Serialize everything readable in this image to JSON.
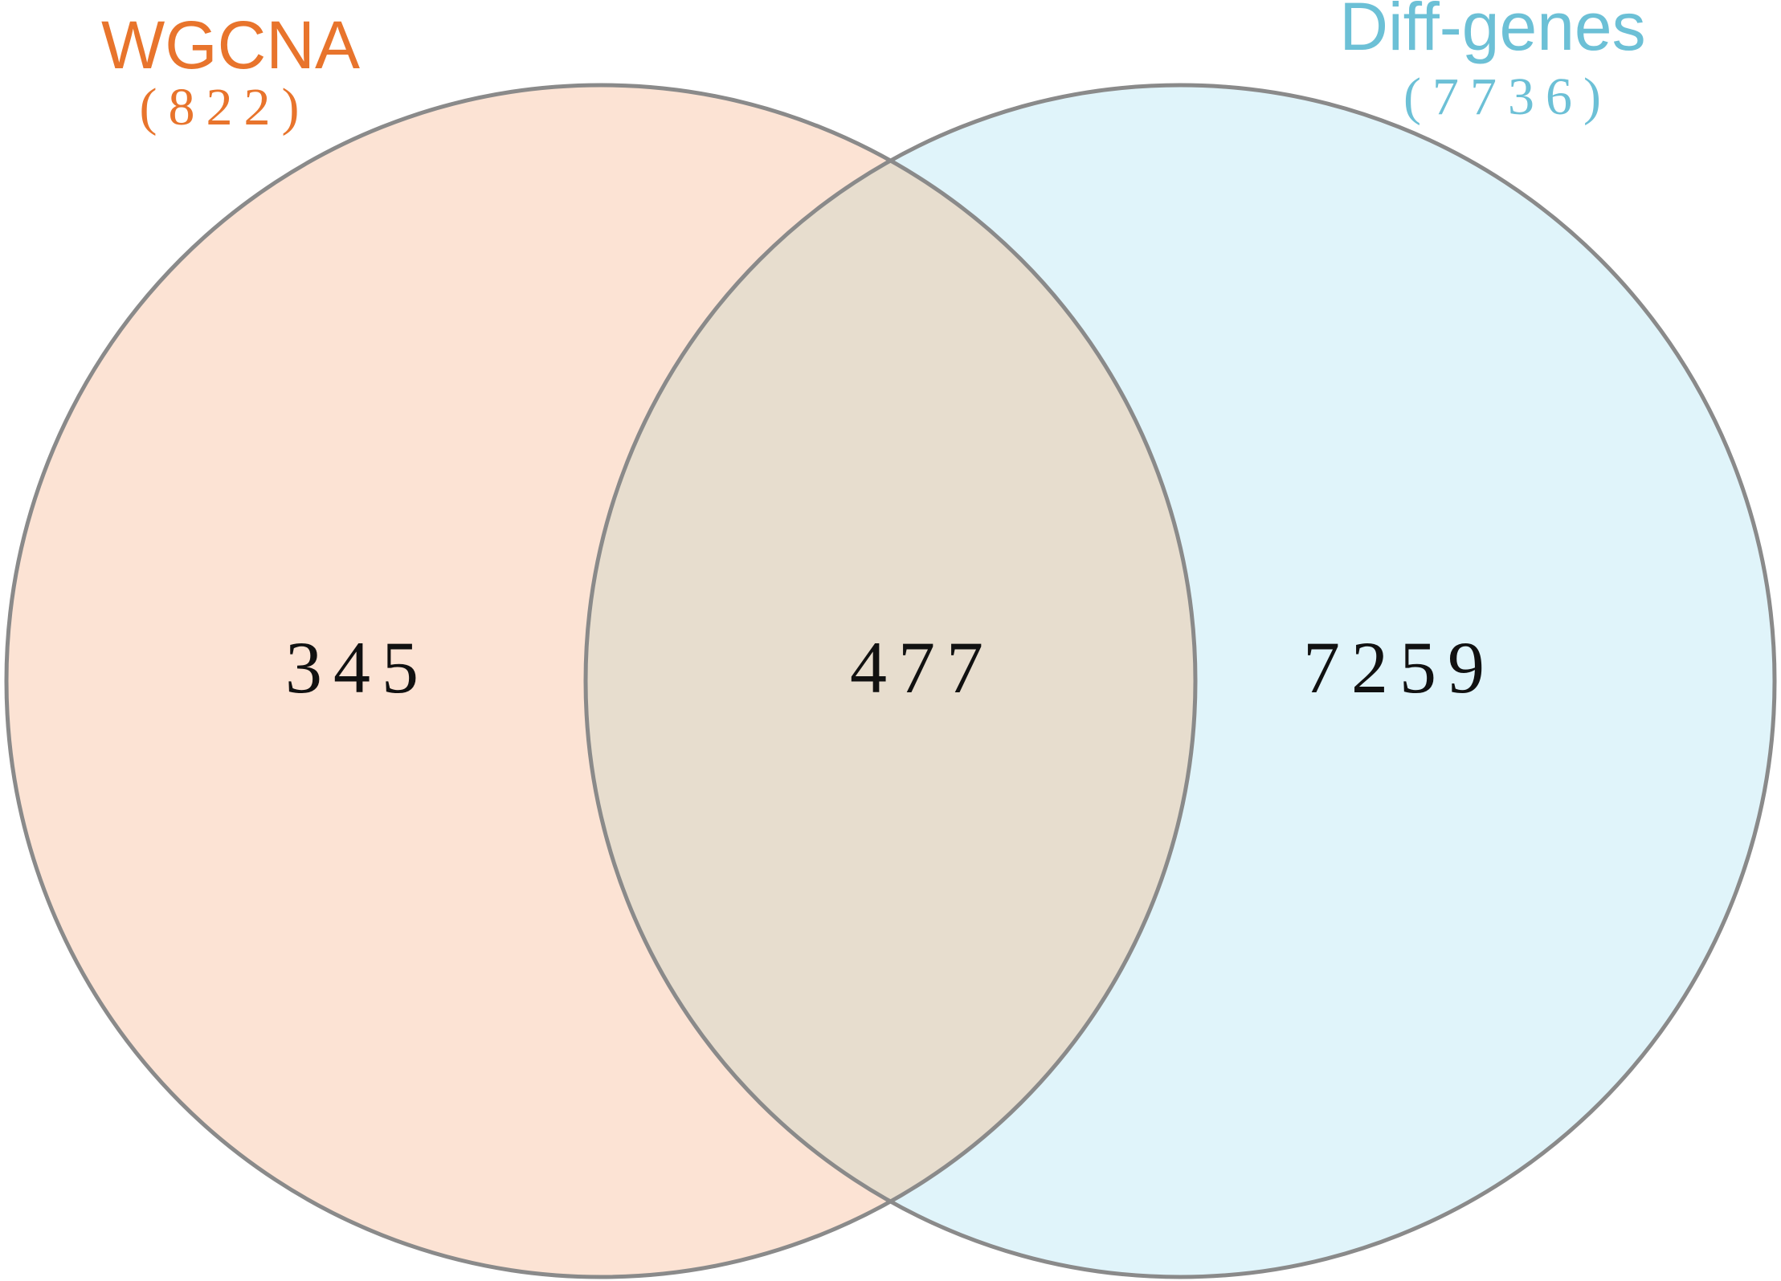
{
  "sets": [
    {
      "name": "WGCNA",
      "total": "(822)",
      "color": "#e8742c",
      "fill": "#fce3d4"
    },
    {
      "name": "Diff-genes",
      "total": "(7736)",
      "color": "#6cc0d6",
      "fill": "#e0f4fa"
    }
  ],
  "regions": {
    "left_only": "345",
    "intersection": "477",
    "right_only": "7259"
  },
  "colors": {
    "intersection_fill": "#e7ddce",
    "outline": "#8a8a8a"
  }
}
